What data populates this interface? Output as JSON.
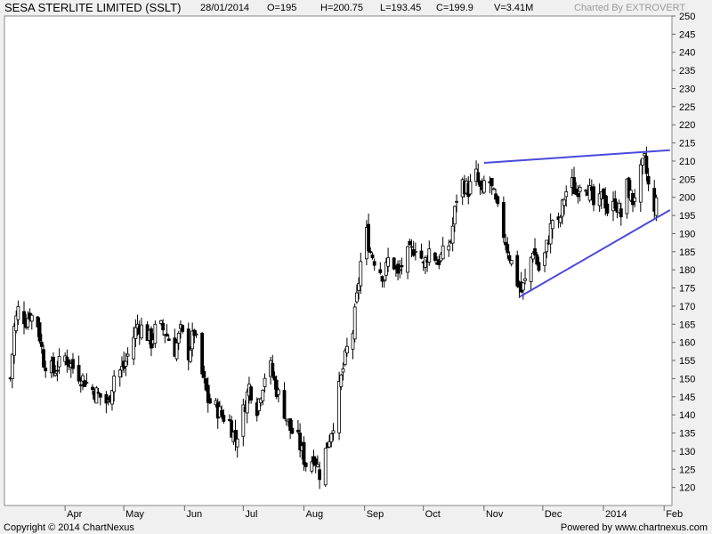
{
  "header": {
    "title": "SESA STERLITE LIMITED (SSLT)",
    "date": "28/01/2014",
    "open": "O=195",
    "high": "H=200.75",
    "low": "L=193.45",
    "close": "C=199.9",
    "volume": "V=3.41M",
    "charted_by": "Charted By EXTROVERT"
  },
  "footer": {
    "copyright": "Copyright © 2014 ChartNexus",
    "powered": "Powered by www.chartnexus.com"
  },
  "chart_data": {
    "type": "candlestick",
    "x_labels": [
      "Apr",
      "May",
      "Jun",
      "Jul",
      "Aug",
      "Sep",
      "Oct",
      "Nov",
      "Dec",
      "2014",
      "Feb"
    ],
    "y_ticks": [
      120,
      125,
      130,
      135,
      140,
      145,
      150,
      155,
      160,
      165,
      170,
      175,
      180,
      185,
      190,
      195,
      200,
      205,
      210,
      215,
      220,
      225,
      230,
      235,
      240,
      245,
      250
    ],
    "ylim": [
      115,
      250
    ],
    "y_axis_side": "right",
    "grid": false,
    "colors": {
      "up": "#ffffff",
      "down": "#000000",
      "trendline": "#4a4adc",
      "background": "#ffffff"
    },
    "trendlines": [
      {
        "from": {
          "date": "2013-11-01",
          "value": 209.5
        },
        "to": {
          "date": "2014-02-04",
          "value": 213
        }
      },
      {
        "from": {
          "date": "2013-11-19",
          "value": 172.5
        },
        "to": {
          "date": "2014-02-04",
          "value": 196.5
        }
      }
    ],
    "anchors": [
      [
        "2013-03-04",
        150
      ],
      [
        "2013-03-06",
        164
      ],
      [
        "2013-03-08",
        169
      ],
      [
        "2013-03-12",
        166
      ],
      [
        "2013-03-14",
        168
      ],
      [
        "2013-03-18",
        165
      ],
      [
        "2013-03-21",
        155
      ],
      [
        "2013-03-26",
        152
      ],
      [
        "2013-04-01",
        156
      ],
      [
        "2013-04-05",
        153
      ],
      [
        "2013-04-10",
        150
      ],
      [
        "2013-04-15",
        147
      ],
      [
        "2013-04-19",
        145
      ],
      [
        "2013-04-23",
        143
      ],
      [
        "2013-04-26",
        151
      ],
      [
        "2013-05-01",
        153
      ],
      [
        "2013-05-05",
        160
      ],
      [
        "2013-05-08",
        165
      ],
      [
        "2013-05-12",
        163
      ],
      [
        "2013-05-15",
        160
      ],
      [
        "2013-05-18",
        165
      ],
      [
        "2013-05-22",
        163
      ],
      [
        "2013-05-27",
        158
      ],
      [
        "2013-05-30",
        163
      ],
      [
        "2013-06-03",
        157
      ],
      [
        "2013-06-06",
        163
      ],
      [
        "2013-06-10",
        151
      ],
      [
        "2013-06-13",
        144
      ],
      [
        "2013-06-17",
        142
      ],
      [
        "2013-06-20",
        140
      ],
      [
        "2013-06-24",
        138
      ],
      [
        "2013-06-27",
        133
      ],
      [
        "2013-07-01",
        141
      ],
      [
        "2013-07-04",
        148
      ],
      [
        "2013-07-08",
        142
      ],
      [
        "2013-07-12",
        151
      ],
      [
        "2013-07-15",
        153
      ],
      [
        "2013-07-18",
        147
      ],
      [
        "2013-07-22",
        141
      ],
      [
        "2013-07-25",
        136
      ],
      [
        "2013-07-29",
        133
      ],
      [
        "2013-08-01",
        128
      ],
      [
        "2013-08-03",
        125
      ],
      [
        "2013-08-06",
        129
      ],
      [
        "2013-08-09",
        124
      ],
      [
        "2013-08-13",
        132
      ],
      [
        "2013-08-16",
        138
      ],
      [
        "2013-08-20",
        150
      ],
      [
        "2013-08-23",
        158
      ],
      [
        "2013-08-26",
        163
      ],
      [
        "2013-08-28",
        172
      ],
      [
        "2013-08-30",
        182
      ],
      [
        "2013-09-02",
        190
      ],
      [
        "2013-09-04",
        185
      ],
      [
        "2013-09-07",
        182
      ],
      [
        "2013-09-11",
        178
      ],
      [
        "2013-09-14",
        185
      ],
      [
        "2013-09-18",
        178
      ],
      [
        "2013-09-21",
        183
      ],
      [
        "2013-09-25",
        185
      ],
      [
        "2013-09-28",
        188
      ],
      [
        "2013-10-01",
        181
      ],
      [
        "2013-10-05",
        187
      ],
      [
        "2013-10-08",
        182
      ],
      [
        "2013-10-12",
        185
      ],
      [
        "2013-10-15",
        188
      ],
      [
        "2013-10-18",
        200
      ],
      [
        "2013-10-21",
        204
      ],
      [
        "2013-10-24",
        202
      ],
      [
        "2013-10-28",
        206
      ],
      [
        "2013-10-31",
        200
      ],
      [
        "2013-11-02",
        208
      ],
      [
        "2013-11-05",
        202
      ],
      [
        "2013-11-08",
        196
      ],
      [
        "2013-11-11",
        190
      ],
      [
        "2013-11-14",
        184
      ],
      [
        "2013-11-17",
        178
      ],
      [
        "2013-11-20",
        174
      ],
      [
        "2013-11-23",
        178
      ],
      [
        "2013-11-26",
        186
      ],
      [
        "2013-11-29",
        180
      ],
      [
        "2013-12-02",
        184
      ],
      [
        "2013-12-06",
        194
      ],
      [
        "2013-12-09",
        192
      ],
      [
        "2013-12-12",
        200
      ],
      [
        "2013-12-15",
        205
      ],
      [
        "2013-12-18",
        201
      ],
      [
        "2013-12-21",
        206
      ],
      [
        "2013-12-24",
        203
      ],
      [
        "2013-12-28",
        196
      ],
      [
        "2014-01-01",
        201
      ],
      [
        "2014-01-04",
        194
      ],
      [
        "2014-01-07",
        199
      ],
      [
        "2014-01-10",
        195
      ],
      [
        "2014-01-13",
        203
      ],
      [
        "2014-01-16",
        199
      ],
      [
        "2014-01-19",
        205
      ],
      [
        "2014-01-22",
        210
      ],
      [
        "2014-01-24",
        203
      ],
      [
        "2014-01-27",
        195
      ],
      [
        "2014-01-28",
        199.9
      ]
    ],
    "last_bar": {
      "date": "2014-01-28",
      "open": 195,
      "high": 200.75,
      "low": 193.45,
      "close": 199.9
    }
  }
}
